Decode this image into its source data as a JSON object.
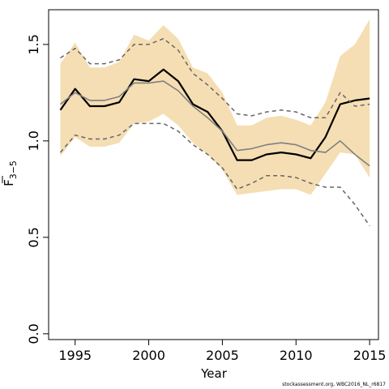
{
  "chart_data": {
    "type": "line",
    "xlabel": "Year",
    "ylabel_main": "F",
    "ylabel_sub": "3−5",
    "xlim": [
      1993.2,
      2015.6
    ],
    "ylim": [
      -0.03,
      1.68
    ],
    "x_ticks": [
      1995,
      2000,
      2005,
      2010,
      2015
    ],
    "x_tick_labels": [
      "1995",
      "2000",
      "2005",
      "2010",
      "2015"
    ],
    "y_ticks": [
      0.0,
      0.5,
      1.0,
      1.5
    ],
    "y_tick_labels": [
      "0.0",
      "0.5",
      "1.0",
      "1.5"
    ],
    "grid": false,
    "x": [
      1994,
      1995,
      1996,
      1997,
      1998,
      1999,
      2000,
      2001,
      2002,
      2003,
      2004,
      2005,
      2006,
      2007,
      2008,
      2009,
      2010,
      2011,
      2012,
      2013,
      2014,
      2015
    ],
    "band": {
      "lower": [
        0.92,
        1.02,
        0.97,
        0.97,
        0.99,
        1.09,
        1.1,
        1.14,
        1.08,
        0.99,
        0.93,
        0.85,
        0.72,
        0.73,
        0.74,
        0.75,
        0.75,
        0.72,
        0.83,
        0.94,
        0.93,
        0.81
      ],
      "upper": [
        1.4,
        1.51,
        1.38,
        1.38,
        1.41,
        1.55,
        1.52,
        1.6,
        1.53,
        1.38,
        1.35,
        1.25,
        1.08,
        1.08,
        1.12,
        1.13,
        1.11,
        1.08,
        1.2,
        1.44,
        1.5,
        1.63
      ],
      "color": "#f5deb3"
    },
    "series": [
      {
        "values": [
          1.16,
          1.27,
          1.18,
          1.18,
          1.2,
          1.32,
          1.31,
          1.37,
          1.31,
          1.19,
          1.15,
          1.05,
          0.9,
          0.9,
          0.93,
          0.94,
          0.93,
          0.91,
          1.02,
          1.19,
          1.21,
          1.22
        ],
        "color": "#000000",
        "style": "solid",
        "width": 2.2
      },
      {
        "values": [
          1.19,
          1.25,
          1.21,
          1.21,
          1.23,
          1.3,
          1.3,
          1.31,
          1.26,
          1.18,
          1.12,
          1.05,
          0.95,
          0.96,
          0.98,
          0.99,
          0.98,
          0.95,
          0.94,
          1.0,
          0.93,
          0.87
        ],
        "color": "#808080",
        "style": "solid",
        "width": 1.6
      },
      {
        "values": [
          1.43,
          1.48,
          1.4,
          1.4,
          1.42,
          1.5,
          1.5,
          1.53,
          1.47,
          1.35,
          1.29,
          1.22,
          1.14,
          1.13,
          1.15,
          1.16,
          1.15,
          1.12,
          1.12,
          1.25,
          1.18,
          1.19
        ],
        "color": "#666666",
        "style": "dashed",
        "width": 1.5
      },
      {
        "values": [
          0.94,
          1.03,
          1.01,
          1.01,
          1.03,
          1.09,
          1.09,
          1.09,
          1.05,
          0.98,
          0.93,
          0.86,
          0.75,
          0.78,
          0.82,
          0.82,
          0.81,
          0.78,
          0.76,
          0.76,
          0.67,
          0.56
        ],
        "color": "#666666",
        "style": "dashed",
        "width": 1.5
      }
    ],
    "footnote": "stockassessment.org, WBC2016_NL_r6817"
  }
}
